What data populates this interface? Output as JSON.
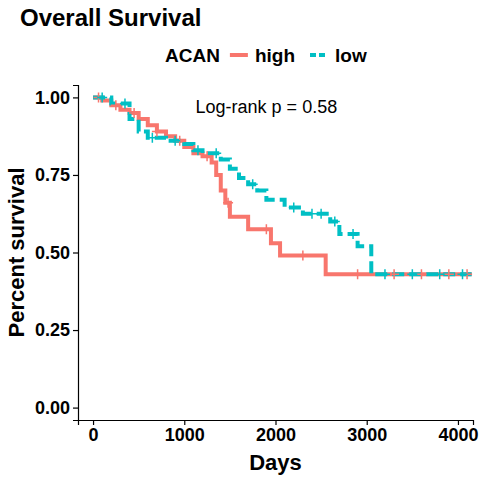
{
  "chart_data": {
    "type": "kaplan-meier",
    "title": "Overall Survival",
    "x_label": "Days",
    "y_label": "Percent survival",
    "annotation": "Log-rank p = 0.58",
    "annotation_x": 1900,
    "annotation_y": 0.97,
    "legend": "top",
    "legend_title": "ACAN",
    "xlim": [
      -165,
      4165
    ],
    "ylim": [
      -0.04,
      1.04
    ],
    "xticks": [
      0,
      1000,
      2000,
      3000,
      4000
    ],
    "yticks": [
      {
        "value": 0,
        "label": "0.00"
      },
      0.25,
      {
        "value": 0.5,
        "label": "0.50"
      },
      0.75,
      {
        "value": 1,
        "label": "1.00"
      }
    ],
    "grid": false,
    "series": [
      {
        "name": "high",
        "color": "#F8766D",
        "line_style": "solid",
        "marker": "plus",
        "x": [
          0,
          100,
          200,
          300,
          400,
          500,
          600,
          700,
          800,
          900,
          1000,
          1100,
          1200,
          1300,
          1350,
          1400,
          1450,
          1500,
          1700,
          1950,
          2050,
          2550,
          4150
        ],
        "values": [
          1.0,
          0.99,
          0.975,
          0.96,
          0.95,
          0.93,
          0.91,
          0.89,
          0.875,
          0.86,
          0.84,
          0.82,
          0.81,
          0.79,
          0.75,
          0.7,
          0.66,
          0.615,
          0.575,
          0.53,
          0.49,
          0.43,
          0.43
        ],
        "censor_x": [
          60,
          250,
          450,
          700,
          950,
          1250,
          1480,
          1900,
          2300,
          2900,
          3300,
          3600,
          3900,
          4100
        ],
        "censor_values": [
          1.0,
          0.975,
          0.95,
          0.89,
          0.86,
          0.81,
          0.66,
          0.575,
          0.49,
          0.43,
          0.43,
          0.43,
          0.43,
          0.43
        ]
      },
      {
        "name": "low",
        "color": "#00BFC4",
        "line_style": "dashed",
        "marker": "plus",
        "x": [
          0,
          200,
          400,
          500,
          600,
          800,
          1000,
          1100,
          1200,
          1400,
          1500,
          1600,
          1700,
          1800,
          1900,
          2100,
          2300,
          2600,
          2700,
          2900,
          3050,
          4150
        ],
        "values": [
          1.0,
          0.98,
          0.93,
          0.89,
          0.87,
          0.86,
          0.85,
          0.83,
          0.82,
          0.8,
          0.77,
          0.74,
          0.72,
          0.7,
          0.67,
          0.645,
          0.625,
          0.6,
          0.56,
          0.52,
          0.43,
          0.43
        ],
        "censor_x": [
          100,
          350,
          650,
          900,
          1150,
          1350,
          1750,
          2200,
          2400,
          2500,
          2650,
          2850,
          3200,
          3500,
          3800,
          4050
        ],
        "censor_values": [
          1.0,
          0.98,
          0.87,
          0.86,
          0.83,
          0.82,
          0.72,
          0.645,
          0.625,
          0.625,
          0.6,
          0.56,
          0.43,
          0.43,
          0.43,
          0.43
        ]
      }
    ]
  }
}
